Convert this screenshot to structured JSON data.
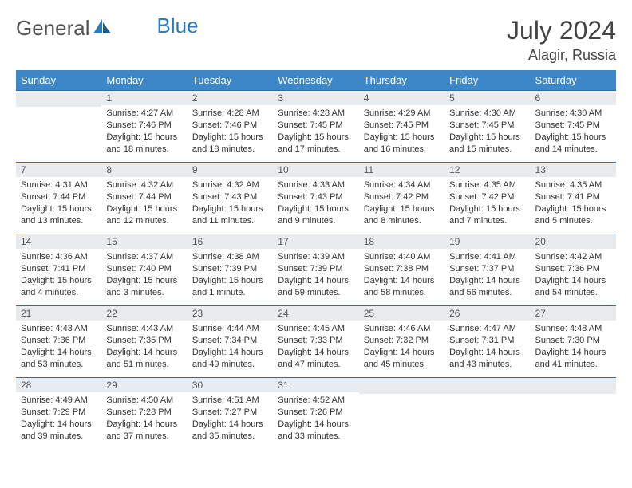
{
  "brand": {
    "part1": "General",
    "part2": "Blue"
  },
  "title": "July 2024",
  "location": "Alagir, Russia",
  "colors": {
    "header_bg": "#3d87c9",
    "header_text": "#ffffff",
    "daynum_bg": "#e9ecef",
    "row_border": "#2b6fa8",
    "text": "#333333",
    "brand_gray": "#555555",
    "brand_blue": "#2b7bbf"
  },
  "weekdays": [
    "Sunday",
    "Monday",
    "Tuesday",
    "Wednesday",
    "Thursday",
    "Friday",
    "Saturday"
  ],
  "weeks": [
    [
      null,
      {
        "n": "1",
        "sr": "Sunrise: 4:27 AM",
        "ss": "Sunset: 7:46 PM",
        "dl": "Daylight: 15 hours and 18 minutes."
      },
      {
        "n": "2",
        "sr": "Sunrise: 4:28 AM",
        "ss": "Sunset: 7:46 PM",
        "dl": "Daylight: 15 hours and 18 minutes."
      },
      {
        "n": "3",
        "sr": "Sunrise: 4:28 AM",
        "ss": "Sunset: 7:45 PM",
        "dl": "Daylight: 15 hours and 17 minutes."
      },
      {
        "n": "4",
        "sr": "Sunrise: 4:29 AM",
        "ss": "Sunset: 7:45 PM",
        "dl": "Daylight: 15 hours and 16 minutes."
      },
      {
        "n": "5",
        "sr": "Sunrise: 4:30 AM",
        "ss": "Sunset: 7:45 PM",
        "dl": "Daylight: 15 hours and 15 minutes."
      },
      {
        "n": "6",
        "sr": "Sunrise: 4:30 AM",
        "ss": "Sunset: 7:45 PM",
        "dl": "Daylight: 15 hours and 14 minutes."
      }
    ],
    [
      {
        "n": "7",
        "sr": "Sunrise: 4:31 AM",
        "ss": "Sunset: 7:44 PM",
        "dl": "Daylight: 15 hours and 13 minutes."
      },
      {
        "n": "8",
        "sr": "Sunrise: 4:32 AM",
        "ss": "Sunset: 7:44 PM",
        "dl": "Daylight: 15 hours and 12 minutes."
      },
      {
        "n": "9",
        "sr": "Sunrise: 4:32 AM",
        "ss": "Sunset: 7:43 PM",
        "dl": "Daylight: 15 hours and 11 minutes."
      },
      {
        "n": "10",
        "sr": "Sunrise: 4:33 AM",
        "ss": "Sunset: 7:43 PM",
        "dl": "Daylight: 15 hours and 9 minutes."
      },
      {
        "n": "11",
        "sr": "Sunrise: 4:34 AM",
        "ss": "Sunset: 7:42 PM",
        "dl": "Daylight: 15 hours and 8 minutes."
      },
      {
        "n": "12",
        "sr": "Sunrise: 4:35 AM",
        "ss": "Sunset: 7:42 PM",
        "dl": "Daylight: 15 hours and 7 minutes."
      },
      {
        "n": "13",
        "sr": "Sunrise: 4:35 AM",
        "ss": "Sunset: 7:41 PM",
        "dl": "Daylight: 15 hours and 5 minutes."
      }
    ],
    [
      {
        "n": "14",
        "sr": "Sunrise: 4:36 AM",
        "ss": "Sunset: 7:41 PM",
        "dl": "Daylight: 15 hours and 4 minutes."
      },
      {
        "n": "15",
        "sr": "Sunrise: 4:37 AM",
        "ss": "Sunset: 7:40 PM",
        "dl": "Daylight: 15 hours and 3 minutes."
      },
      {
        "n": "16",
        "sr": "Sunrise: 4:38 AM",
        "ss": "Sunset: 7:39 PM",
        "dl": "Daylight: 15 hours and 1 minute."
      },
      {
        "n": "17",
        "sr": "Sunrise: 4:39 AM",
        "ss": "Sunset: 7:39 PM",
        "dl": "Daylight: 14 hours and 59 minutes."
      },
      {
        "n": "18",
        "sr": "Sunrise: 4:40 AM",
        "ss": "Sunset: 7:38 PM",
        "dl": "Daylight: 14 hours and 58 minutes."
      },
      {
        "n": "19",
        "sr": "Sunrise: 4:41 AM",
        "ss": "Sunset: 7:37 PM",
        "dl": "Daylight: 14 hours and 56 minutes."
      },
      {
        "n": "20",
        "sr": "Sunrise: 4:42 AM",
        "ss": "Sunset: 7:36 PM",
        "dl": "Daylight: 14 hours and 54 minutes."
      }
    ],
    [
      {
        "n": "21",
        "sr": "Sunrise: 4:43 AM",
        "ss": "Sunset: 7:36 PM",
        "dl": "Daylight: 14 hours and 53 minutes."
      },
      {
        "n": "22",
        "sr": "Sunrise: 4:43 AM",
        "ss": "Sunset: 7:35 PM",
        "dl": "Daylight: 14 hours and 51 minutes."
      },
      {
        "n": "23",
        "sr": "Sunrise: 4:44 AM",
        "ss": "Sunset: 7:34 PM",
        "dl": "Daylight: 14 hours and 49 minutes."
      },
      {
        "n": "24",
        "sr": "Sunrise: 4:45 AM",
        "ss": "Sunset: 7:33 PM",
        "dl": "Daylight: 14 hours and 47 minutes."
      },
      {
        "n": "25",
        "sr": "Sunrise: 4:46 AM",
        "ss": "Sunset: 7:32 PM",
        "dl": "Daylight: 14 hours and 45 minutes."
      },
      {
        "n": "26",
        "sr": "Sunrise: 4:47 AM",
        "ss": "Sunset: 7:31 PM",
        "dl": "Daylight: 14 hours and 43 minutes."
      },
      {
        "n": "27",
        "sr": "Sunrise: 4:48 AM",
        "ss": "Sunset: 7:30 PM",
        "dl": "Daylight: 14 hours and 41 minutes."
      }
    ],
    [
      {
        "n": "28",
        "sr": "Sunrise: 4:49 AM",
        "ss": "Sunset: 7:29 PM",
        "dl": "Daylight: 14 hours and 39 minutes."
      },
      {
        "n": "29",
        "sr": "Sunrise: 4:50 AM",
        "ss": "Sunset: 7:28 PM",
        "dl": "Daylight: 14 hours and 37 minutes."
      },
      {
        "n": "30",
        "sr": "Sunrise: 4:51 AM",
        "ss": "Sunset: 7:27 PM",
        "dl": "Daylight: 14 hours and 35 minutes."
      },
      {
        "n": "31",
        "sr": "Sunrise: 4:52 AM",
        "ss": "Sunset: 7:26 PM",
        "dl": "Daylight: 14 hours and 33 minutes."
      },
      null,
      null,
      null
    ]
  ]
}
